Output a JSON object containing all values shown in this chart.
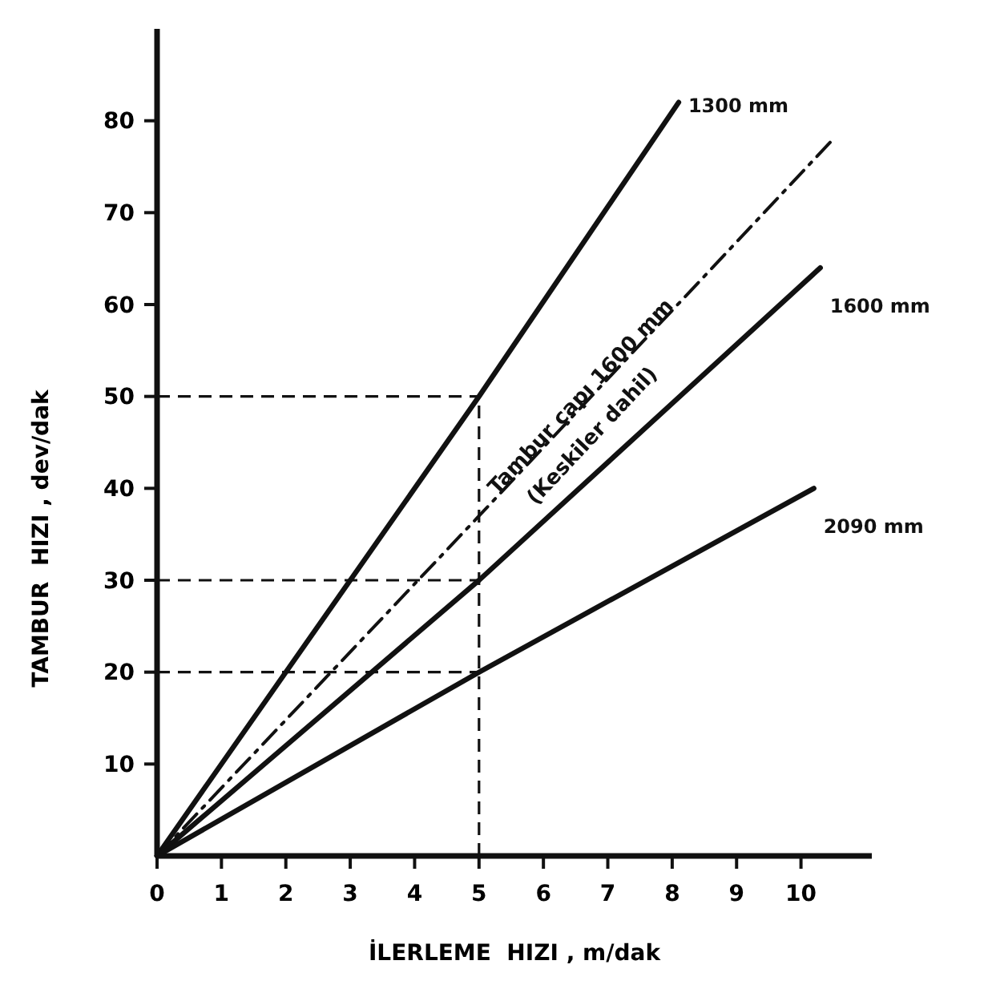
{
  "chart_data": {
    "type": "line",
    "xlabel": "İLERLEME  HIZI , m/dak",
    "ylabel": "TAMBUR  HIZI , dev/dak",
    "xlim": [
      0,
      11.1
    ],
    "ylim": [
      0,
      90
    ],
    "xticks": [
      0,
      1,
      2,
      3,
      4,
      5,
      6,
      7,
      8,
      9,
      10
    ],
    "yticks": [
      10,
      20,
      30,
      40,
      50,
      60,
      70,
      80
    ],
    "grid": false,
    "marker": "none",
    "series": [
      {
        "name": "1300 mm",
        "color": "#111111",
        "x": [
          0,
          5,
          8.1
        ],
        "values": [
          0,
          50,
          82
        ],
        "line_style": "solid"
      },
      {
        "name": "Tambur çapı 1600 mm (Keskiler dahil)",
        "color": "#111111",
        "x": [
          0,
          5,
          10.5
        ],
        "values": [
          0,
          37,
          78
        ],
        "line_style": "dashed"
      },
      {
        "name": "1600 mm",
        "color": "#111111",
        "x": [
          0,
          5,
          10.3
        ],
        "values": [
          0,
          30,
          64
        ],
        "line_style": "solid"
      },
      {
        "name": "2090 mm",
        "color": "#111111",
        "x": [
          0,
          5,
          10.2
        ],
        "values": [
          0,
          20,
          40
        ],
        "line_style": "solid"
      }
    ],
    "ref_lines": [
      {
        "axis": "y",
        "value": 50,
        "color": "#111111",
        "line_style": "dashed"
      },
      {
        "axis": "y",
        "value": 30,
        "color": "#111111",
        "line_style": "dashed"
      },
      {
        "axis": "y",
        "value": 20,
        "color": "#111111",
        "line_style": "dashed"
      },
      {
        "axis": "x",
        "value": 5,
        "color": "#111111",
        "line_style": "dashed"
      }
    ]
  }
}
